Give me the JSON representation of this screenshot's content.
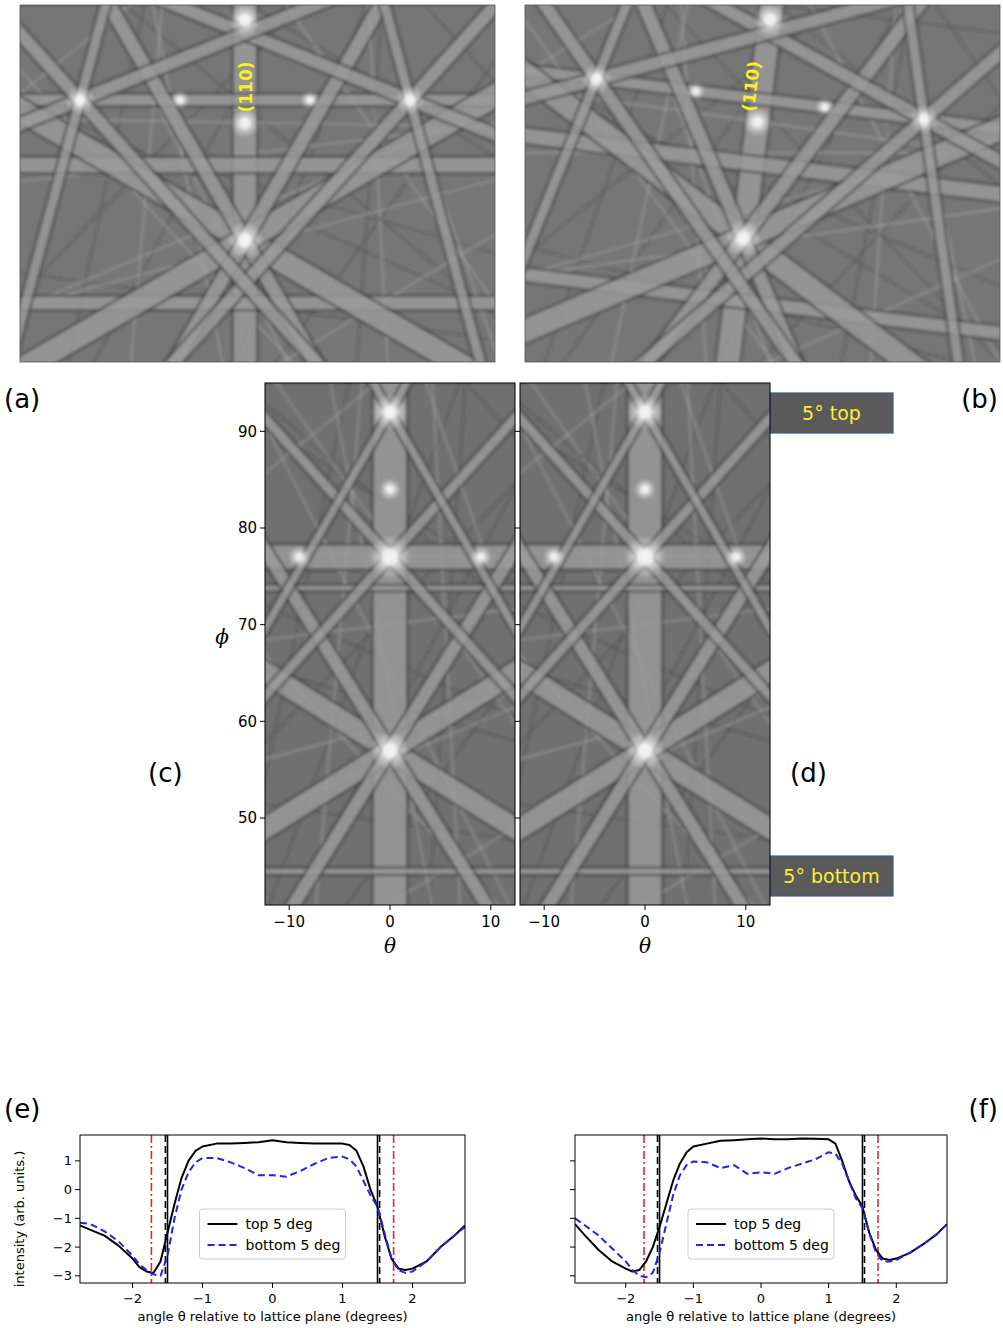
{
  "figure": {
    "panel_labels": [
      "(a)",
      "(b)",
      "(c)",
      "(d)",
      "(e)",
      "(f)"
    ],
    "images": [
      {
        "band_label": "(110)"
      },
      {
        "band_label": "(110)"
      }
    ],
    "annotations": [
      "5° top",
      "5° bottom"
    ]
  },
  "chart_data": [
    {
      "type": "image",
      "x_label": "θ",
      "y_label": "ϕ",
      "xlim": [
        -12.4,
        12.4
      ],
      "ylim": [
        41,
        95
      ],
      "xticks": [
        {
          "value": -10,
          "label": "−10"
        },
        0,
        10
      ],
      "yticks": [
        50,
        60,
        70,
        80,
        90
      ]
    },
    {
      "type": "image",
      "x_label": "θ",
      "xlim": [
        -12.4,
        12.4
      ],
      "ylim": [
        41,
        95
      ],
      "xticks": [
        {
          "value": -10,
          "label": "−10"
        },
        0,
        10
      ],
      "yticks": [
        50,
        60,
        70,
        80,
        90
      ],
      "tick_labels": "x"
    },
    {
      "type": "line",
      "x_label": "angle θ relative to lattice plane (degrees)",
      "y_label": "intensity (arb. units.)",
      "xlim": [
        -2.75,
        2.75
      ],
      "ylim": [
        -3.25,
        1.9
      ],
      "xticks": [
        {
          "value": -2,
          "label": "−2"
        },
        {
          "value": -1,
          "label": "−1"
        },
        0,
        1,
        2
      ],
      "yticks": [
        {
          "value": -3,
          "label": "−3"
        },
        {
          "value": -2,
          "label": "−2"
        },
        {
          "value": -1,
          "label": "−1"
        },
        0,
        1
      ],
      "legend": "lower center",
      "x": [
        -2.75,
        -2.6,
        -2.4,
        -2.2,
        -2.0,
        -1.9,
        -1.8,
        -1.7,
        -1.6,
        -1.5,
        -1.4,
        -1.3,
        -1.2,
        -1.1,
        -1.0,
        -0.8,
        -0.6,
        -0.4,
        -0.2,
        0,
        0.2,
        0.4,
        0.6,
        0.8,
        1.0,
        1.1,
        1.2,
        1.3,
        1.4,
        1.5,
        1.6,
        1.7,
        1.8,
        1.9,
        2.0,
        2.2,
        2.4,
        2.6,
        2.75
      ],
      "series": [
        {
          "name": "top 5 deg",
          "color": "#000000",
          "line_style": "solid",
          "values": [
            -1.25,
            -1.4,
            -1.6,
            -1.95,
            -2.4,
            -2.7,
            -2.85,
            -2.9,
            -2.5,
            -1.5,
            -0.5,
            0.4,
            1.0,
            1.35,
            1.5,
            1.6,
            1.6,
            1.62,
            1.65,
            1.72,
            1.65,
            1.62,
            1.6,
            1.6,
            1.6,
            1.55,
            1.35,
            0.8,
            0.0,
            -0.6,
            -1.6,
            -2.4,
            -2.75,
            -2.8,
            -2.75,
            -2.5,
            -2.0,
            -1.6,
            -1.25
          ]
        },
        {
          "name": "bottom 5 deg",
          "color": "#2424e8",
          "line_style": "dashed",
          "values": [
            -1.15,
            -1.2,
            -1.45,
            -1.8,
            -2.3,
            -2.6,
            -2.8,
            -2.95,
            -3.0,
            -2.3,
            -1.0,
            0.0,
            0.6,
            0.95,
            1.1,
            1.1,
            0.95,
            0.75,
            0.5,
            0.5,
            0.45,
            0.65,
            0.9,
            1.1,
            1.15,
            1.05,
            0.8,
            0.3,
            -0.2,
            -0.6,
            -1.5,
            -2.4,
            -2.8,
            -2.9,
            -2.85,
            -2.5,
            -2.0,
            -1.6,
            -1.3
          ]
        }
      ],
      "vertical_lines": [
        {
          "x": -1.73,
          "color": "#e8222a",
          "line_style": "dashdot"
        },
        {
          "x": 1.73,
          "color": "#e8222a",
          "line_style": "dashdot"
        },
        {
          "x": -1.5,
          "color": "#000000",
          "line_style": "solid"
        },
        {
          "x": 1.5,
          "color": "#000000",
          "line_style": "solid"
        },
        {
          "x": -1.53,
          "color": "#000000",
          "line_style": "dashed"
        },
        {
          "x": 1.53,
          "color": "#000000",
          "line_style": "dashed"
        }
      ]
    },
    {
      "type": "line",
      "x_label": "angle θ relative to lattice plane (degrees)",
      "xlim": [
        -2.75,
        2.75
      ],
      "ylim": [
        -3.25,
        1.9
      ],
      "xticks": [
        {
          "value": -2,
          "label": "−2"
        },
        {
          "value": -1,
          "label": "−1"
        },
        0,
        1,
        2
      ],
      "yticks": [
        -3,
        -2,
        -1,
        0,
        1
      ],
      "tick_labels": "x",
      "legend": "lower center",
      "x": [
        -2.75,
        -2.6,
        -2.4,
        -2.2,
        -2.0,
        -1.9,
        -1.8,
        -1.7,
        -1.6,
        -1.5,
        -1.4,
        -1.3,
        -1.2,
        -1.1,
        -1.0,
        -0.8,
        -0.6,
        -0.4,
        -0.2,
        0,
        0.2,
        0.4,
        0.6,
        0.8,
        1.0,
        1.1,
        1.2,
        1.3,
        1.4,
        1.5,
        1.6,
        1.7,
        1.8,
        1.9,
        2.0,
        2.2,
        2.4,
        2.6,
        2.75
      ],
      "series": [
        {
          "name": "top 5 deg",
          "color": "#000000",
          "line_style": "solid",
          "values": [
            -1.2,
            -1.6,
            -2.1,
            -2.5,
            -2.75,
            -2.85,
            -2.8,
            -2.5,
            -2.0,
            -1.3,
            -0.5,
            0.3,
            0.9,
            1.3,
            1.5,
            1.6,
            1.7,
            1.72,
            1.75,
            1.78,
            1.75,
            1.75,
            1.78,
            1.77,
            1.75,
            1.6,
            1.0,
            0.3,
            -0.2,
            -0.6,
            -1.5,
            -2.1,
            -2.4,
            -2.45,
            -2.4,
            -2.2,
            -1.9,
            -1.55,
            -1.2
          ]
        },
        {
          "name": "bottom 5 deg",
          "color": "#2424e8",
          "line_style": "dashed",
          "values": [
            -1.0,
            -1.25,
            -1.6,
            -2.05,
            -2.5,
            -2.8,
            -3.0,
            -3.05,
            -2.9,
            -2.2,
            -1.2,
            -0.2,
            0.5,
            0.85,
            0.98,
            0.95,
            0.75,
            0.85,
            0.55,
            0.6,
            0.55,
            0.75,
            0.9,
            1.05,
            1.3,
            1.25,
            0.9,
            0.3,
            -0.3,
            -0.65,
            -1.5,
            -2.2,
            -2.5,
            -2.5,
            -2.45,
            -2.2,
            -1.9,
            -1.55,
            -1.2
          ]
        }
      ],
      "vertical_lines": [
        {
          "x": -1.73,
          "color": "#e8222a",
          "line_style": "dashdot"
        },
        {
          "x": 1.73,
          "color": "#e8222a",
          "line_style": "dashdot"
        },
        {
          "x": -1.5,
          "color": "#000000",
          "line_style": "solid"
        },
        {
          "x": 1.5,
          "color": "#000000",
          "line_style": "solid"
        },
        {
          "x": -1.53,
          "color": "#000000",
          "line_style": "dashed"
        },
        {
          "x": 1.53,
          "color": "#000000",
          "line_style": "dashed"
        }
      ]
    }
  ]
}
